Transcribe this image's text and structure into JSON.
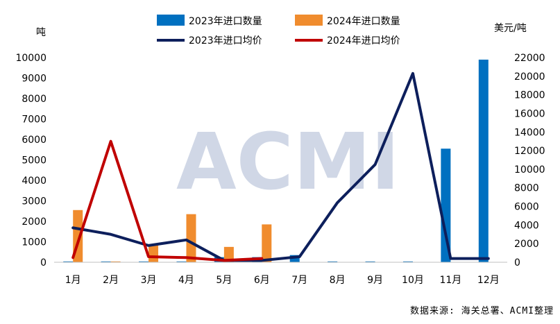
{
  "chart_data": {
    "type": "bar+line",
    "categories": [
      "1月",
      "2月",
      "3月",
      "4月",
      "5月",
      "6月",
      "7月",
      "8月",
      "9月",
      "10月",
      "11月",
      "12月"
    ],
    "left_unit": "吨",
    "right_unit": "美元/吨",
    "left_ylim": [
      0,
      10000
    ],
    "left_ticks": [
      0,
      1000,
      2000,
      3000,
      4000,
      5000,
      6000,
      7000,
      8000,
      9000,
      10000
    ],
    "right_ylim": [
      0,
      22000
    ],
    "right_ticks": [
      0,
      2000,
      4000,
      6000,
      8000,
      10000,
      12000,
      14000,
      16000,
      18000,
      20000,
      22000
    ],
    "grid": false,
    "legend_position": "top",
    "bar_series": [
      {
        "name": "2023年进口数量",
        "color": "#0070C0",
        "values": [
          40,
          40,
          40,
          40,
          250,
          250,
          350,
          40,
          40,
          40,
          5550,
          9900
        ]
      },
      {
        "name": "2024年进口数量",
        "color": "#F08C2E",
        "values": [
          2550,
          40,
          850,
          2350,
          750,
          1850,
          null,
          null,
          null,
          null,
          null,
          null
        ]
      }
    ],
    "line_series": [
      {
        "name": "2023年进口均价",
        "color": "#0D1F5C",
        "values": [
          3700,
          3000,
          1800,
          2400,
          200,
          200,
          600,
          6400,
          10500,
          20300,
          400,
          400
        ]
      },
      {
        "name": "2024年进口均价",
        "color": "#C00000",
        "values": [
          500,
          13000,
          600,
          500,
          200,
          400,
          null,
          null,
          null,
          null,
          null,
          null
        ]
      }
    ]
  },
  "watermark": "ACMI",
  "source_note": "数据来源: 海关总署、ACMI整理"
}
